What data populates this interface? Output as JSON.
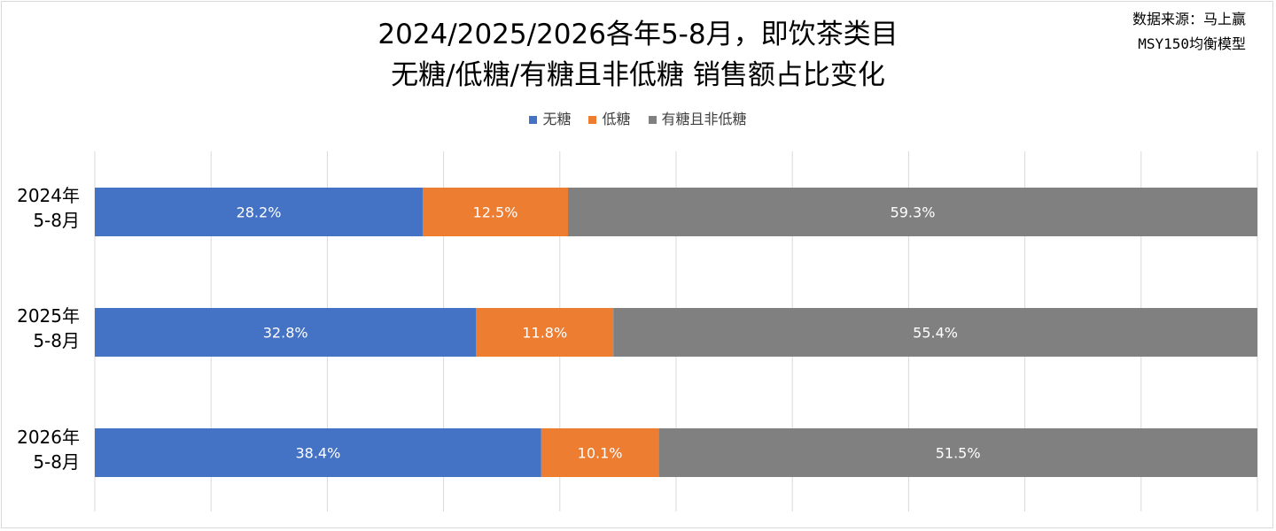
{
  "source_line1": "数据来源：马上赢",
  "source_line2": "MSY150均衡模型",
  "chart_data": {
    "type": "bar",
    "orientation": "horizontal",
    "stacked": "percent",
    "title_line1": "2024/2025/2026各年5-8月，即饮茶类目",
    "title_line2": "无糖/低糖/有糖且非低糖 销售额占比变化",
    "categories": [
      {
        "line1": "2024年",
        "line2": "5-8月"
      },
      {
        "line1": "2025年",
        "line2": "5-8月"
      },
      {
        "line1": "2026年",
        "line2": "5-8月"
      }
    ],
    "series": [
      {
        "name": "无糖",
        "color": "#4472c4",
        "values": [
          28.2,
          32.8,
          38.4
        ],
        "labels": [
          "28.2%",
          "32.8%",
          "38.4%"
        ]
      },
      {
        "name": "低糖",
        "color": "#ed7d31",
        "values": [
          12.5,
          11.8,
          10.1
        ],
        "labels": [
          "12.5%",
          "11.8%",
          "10.1%"
        ]
      },
      {
        "name": "有糖且非低糖",
        "color": "#808080",
        "values": [
          59.3,
          55.4,
          51.5
        ],
        "labels": [
          "59.3%",
          "55.4%",
          "51.5%"
        ]
      }
    ],
    "xlim": [
      0,
      100
    ],
    "grid": true,
    "legend_position": "top"
  }
}
